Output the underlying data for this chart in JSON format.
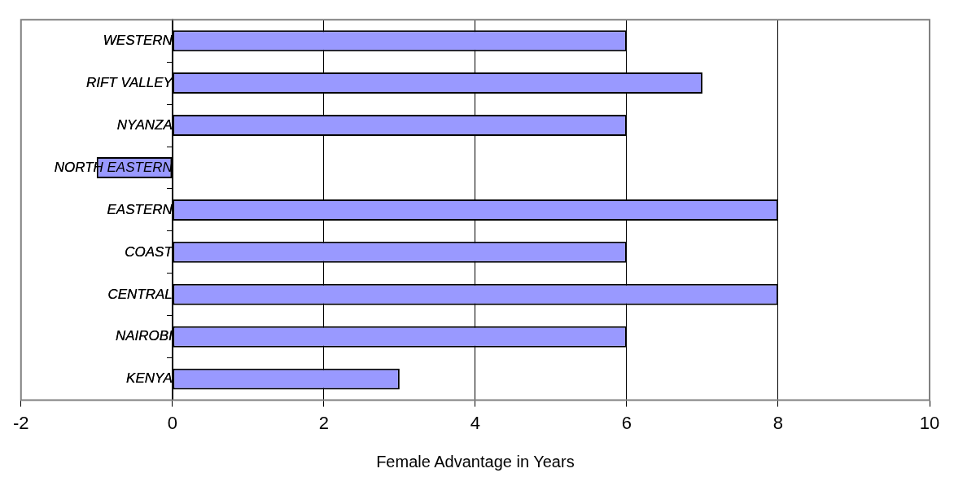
{
  "chart_data": {
    "type": "bar",
    "orientation": "horizontal",
    "xlabel": "Female Advantage in Years",
    "categories": [
      "WESTERN",
      "RIFT VALLEY",
      "NYANZA",
      "NORTH EASTERN",
      "EASTERN",
      "COAST",
      "CENTRAL",
      "NAIROBI",
      "KENYA"
    ],
    "values": [
      6,
      7,
      6,
      -1,
      8,
      6,
      8,
      6,
      3
    ],
    "color": "#9999ff",
    "xlim": [
      -2,
      10
    ],
    "xticks": [
      -2,
      0,
      2,
      4,
      6,
      8,
      10
    ],
    "grid": "x",
    "legend": false
  }
}
